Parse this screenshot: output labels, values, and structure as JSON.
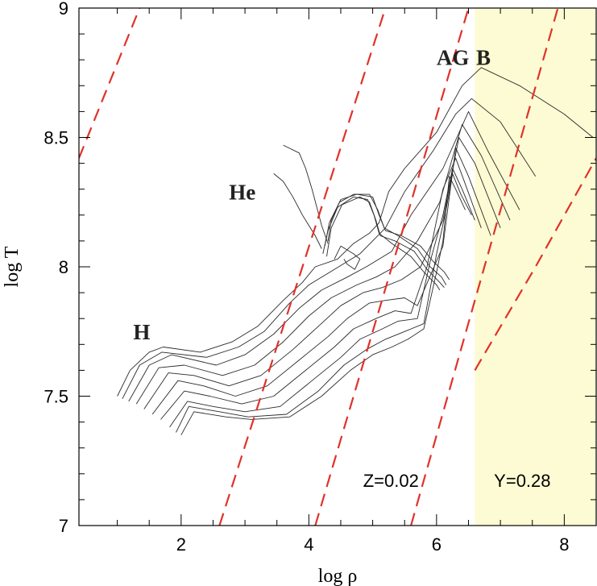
{
  "chart_data": {
    "type": "line",
    "xlabel": "log ρ",
    "ylabel": "log T",
    "xlim": [
      0.4,
      8.5
    ],
    "ylim": [
      7,
      9
    ],
    "x_ticks": [
      2,
      4,
      6,
      8
    ],
    "y_ticks": [
      7,
      7.5,
      8,
      8.5,
      9
    ],
    "x_tick_labels": [
      "2",
      "4",
      "6",
      "8"
    ],
    "y_tick_labels": [
      "7",
      "7.5",
      "8",
      "8.5",
      "9"
    ],
    "grid": false,
    "shaded_region": {
      "x_from": 6.6,
      "x_to": 8.5,
      "color": "#fdfbd3"
    },
    "annotations": [
      {
        "id": "label-h",
        "text": "H",
        "x": 1.25,
        "y": 7.72
      },
      {
        "id": "label-he",
        "text": "He",
        "x": 2.75,
        "y": 8.26
      },
      {
        "id": "label-agb-a",
        "text": "AG",
        "x": 6.0,
        "y": 8.78
      },
      {
        "id": "label-agb-b",
        "text": "B",
        "x": 6.62,
        "y": 8.78
      },
      {
        "id": "label-z",
        "text": "Z=0.02",
        "x": 4.85,
        "y": 7.15
      },
      {
        "id": "label-y",
        "text": "Y=0.28",
        "x": 6.9,
        "y": 7.15
      }
    ],
    "reference_lines": {
      "style": "dashed",
      "color": "#e0322a",
      "lines": [
        {
          "points": [
            [
              0.4,
              8.42
            ],
            [
              1.35,
              9.0
            ]
          ]
        },
        {
          "points": [
            [
              2.6,
              7.0
            ],
            [
              5.2,
              9.0
            ]
          ]
        },
        {
          "points": [
            [
              4.1,
              7.0
            ],
            [
              6.5,
              9.0
            ]
          ]
        },
        {
          "points": [
            [
              5.6,
              7.0
            ],
            [
              7.9,
              9.0
            ]
          ]
        },
        {
          "points": [
            [
              6.6,
              7.6
            ],
            [
              7.55,
              8.0
            ],
            [
              8.5,
              8.42
            ]
          ]
        }
      ]
    },
    "series": [
      {
        "points": [
          [
            1.0,
            7.5
          ],
          [
            1.2,
            7.6
          ],
          [
            1.5,
            7.67
          ],
          [
            1.72,
            7.69
          ],
          [
            2.3,
            7.67
          ],
          [
            2.8,
            7.71
          ],
          [
            3.2,
            7.77
          ],
          [
            3.6,
            7.87
          ],
          [
            3.9,
            7.94
          ],
          [
            4.1,
            8.0
          ],
          [
            4.45,
            8.03
          ],
          [
            4.7,
            8.09
          ],
          [
            4.95,
            8.13
          ],
          [
            5.1,
            8.17
          ],
          [
            5.25,
            8.29
          ],
          [
            5.5,
            8.38
          ],
          [
            6.0,
            8.52
          ],
          [
            6.4,
            8.7
          ],
          [
            6.7,
            8.77
          ],
          [
            7.3,
            8.7
          ],
          [
            8.0,
            8.59
          ],
          [
            8.45,
            8.5
          ]
        ]
      },
      {
        "points": [
          [
            1.08,
            7.49
          ],
          [
            1.35,
            7.62
          ],
          [
            1.7,
            7.67
          ],
          [
            2.4,
            7.65
          ],
          [
            2.9,
            7.69
          ],
          [
            3.3,
            7.75
          ],
          [
            3.7,
            7.86
          ],
          [
            4.0,
            7.93
          ],
          [
            4.4,
            7.99
          ],
          [
            4.8,
            8.05
          ],
          [
            5.2,
            8.15
          ],
          [
            5.5,
            8.29
          ],
          [
            5.95,
            8.45
          ],
          [
            6.3,
            8.59
          ],
          [
            6.55,
            8.65
          ],
          [
            7.0,
            8.56
          ],
          [
            7.55,
            8.35
          ]
        ]
      },
      {
        "points": [
          [
            1.18,
            7.48
          ],
          [
            1.5,
            7.62
          ],
          [
            1.85,
            7.66
          ],
          [
            2.55,
            7.62
          ],
          [
            3.0,
            7.66
          ],
          [
            3.45,
            7.74
          ],
          [
            3.85,
            7.84
          ],
          [
            4.2,
            7.91
          ],
          [
            4.6,
            7.96
          ],
          [
            4.9,
            8.0
          ],
          [
            5.3,
            8.06
          ],
          [
            5.6,
            8.2
          ],
          [
            6.1,
            8.38
          ],
          [
            6.5,
            8.6
          ],
          [
            6.8,
            8.45
          ],
          [
            7.3,
            8.22
          ]
        ]
      },
      {
        "points": [
          [
            1.3,
            7.47
          ],
          [
            1.65,
            7.61
          ],
          [
            2.05,
            7.62
          ],
          [
            2.65,
            7.58
          ],
          [
            3.15,
            7.62
          ],
          [
            3.6,
            7.71
          ],
          [
            4.0,
            7.81
          ],
          [
            4.35,
            7.88
          ],
          [
            4.75,
            7.93
          ],
          [
            5.05,
            7.96
          ],
          [
            5.35,
            8.0
          ],
          [
            5.7,
            8.1
          ],
          [
            6.05,
            8.25
          ],
          [
            6.4,
            8.55
          ],
          [
            6.7,
            8.43
          ],
          [
            7.15,
            8.18
          ]
        ]
      },
      {
        "points": [
          [
            1.42,
            7.45
          ],
          [
            1.8,
            7.59
          ],
          [
            2.2,
            7.58
          ],
          [
            2.75,
            7.54
          ],
          [
            3.25,
            7.58
          ],
          [
            3.75,
            7.68
          ],
          [
            4.15,
            7.77
          ],
          [
            4.5,
            7.85
          ],
          [
            4.85,
            7.9
          ],
          [
            5.15,
            7.92
          ],
          [
            5.45,
            7.95
          ],
          [
            5.75,
            8.0
          ],
          [
            6.1,
            8.18
          ],
          [
            6.35,
            8.5
          ],
          [
            6.6,
            8.4
          ],
          [
            7.0,
            8.15
          ]
        ]
      },
      {
        "points": [
          [
            1.55,
            7.43
          ],
          [
            1.95,
            7.56
          ],
          [
            2.35,
            7.54
          ],
          [
            2.85,
            7.5
          ],
          [
            3.35,
            7.54
          ],
          [
            3.85,
            7.64
          ],
          [
            4.3,
            7.73
          ],
          [
            4.6,
            7.8
          ],
          [
            4.95,
            7.86
          ],
          [
            5.2,
            7.87
          ],
          [
            5.5,
            7.88
          ],
          [
            5.7,
            7.85
          ],
          [
            6.1,
            8.08
          ],
          [
            6.3,
            8.46
          ],
          [
            6.5,
            8.35
          ],
          [
            6.85,
            8.12
          ]
        ]
      },
      {
        "points": [
          [
            1.68,
            7.41
          ],
          [
            2.05,
            7.52
          ],
          [
            2.45,
            7.5
          ],
          [
            2.95,
            7.47
          ],
          [
            3.45,
            7.5
          ],
          [
            3.95,
            7.6
          ],
          [
            4.4,
            7.69
          ],
          [
            4.7,
            7.76
          ],
          [
            5.05,
            7.8
          ],
          [
            5.35,
            7.83
          ],
          [
            5.6,
            7.82
          ],
          [
            5.85,
            8.0
          ],
          [
            6.1,
            8.3
          ],
          [
            6.3,
            8.42
          ],
          [
            6.45,
            8.32
          ],
          [
            6.7,
            8.15
          ]
        ]
      },
      {
        "points": [
          [
            1.82,
            7.38
          ],
          [
            2.1,
            7.48
          ],
          [
            2.5,
            7.46
          ],
          [
            3.0,
            7.44
          ],
          [
            3.55,
            7.46
          ],
          [
            4.05,
            7.56
          ],
          [
            4.5,
            7.65
          ],
          [
            4.8,
            7.72
          ],
          [
            5.15,
            7.76
          ],
          [
            5.4,
            7.79
          ],
          [
            5.7,
            7.8
          ],
          [
            5.9,
            8.02
          ],
          [
            6.1,
            8.2
          ],
          [
            6.25,
            8.38
          ],
          [
            6.4,
            8.3
          ],
          [
            6.6,
            8.18
          ]
        ]
      },
      {
        "points": [
          [
            1.92,
            7.36
          ],
          [
            2.12,
            7.46
          ],
          [
            2.6,
            7.44
          ],
          [
            3.05,
            7.42
          ],
          [
            3.65,
            7.43
          ],
          [
            4.15,
            7.52
          ],
          [
            4.55,
            7.62
          ],
          [
            4.9,
            7.68
          ],
          [
            5.2,
            7.72
          ],
          [
            5.5,
            7.75
          ],
          [
            5.8,
            7.78
          ],
          [
            6.0,
            8.05
          ],
          [
            6.15,
            8.22
          ],
          [
            6.25,
            8.36
          ],
          [
            6.38,
            8.28
          ],
          [
            6.55,
            8.2
          ]
        ]
      },
      {
        "points": [
          [
            2.0,
            7.35
          ],
          [
            2.2,
            7.44
          ],
          [
            2.7,
            7.42
          ],
          [
            3.1,
            7.41
          ],
          [
            3.7,
            7.42
          ],
          [
            4.2,
            7.5
          ],
          [
            4.65,
            7.6
          ],
          [
            5.0,
            7.66
          ],
          [
            5.3,
            7.69
          ],
          [
            5.55,
            7.72
          ],
          [
            5.8,
            7.76
          ],
          [
            6.0,
            7.98
          ],
          [
            6.1,
            8.1
          ],
          [
            6.2,
            8.35
          ],
          [
            6.3,
            8.3
          ],
          [
            6.45,
            8.22
          ]
        ]
      }
    ],
    "loop_series": [
      {
        "points": [
          [
            4.3,
            8.1
          ],
          [
            4.35,
            8.18
          ],
          [
            4.5,
            8.26
          ],
          [
            4.75,
            8.28
          ],
          [
            5.0,
            8.27
          ],
          [
            5.1,
            8.2
          ],
          [
            5.2,
            8.14
          ],
          [
            5.45,
            8.12
          ],
          [
            5.75,
            8.08
          ],
          [
            5.95,
            8.02
          ],
          [
            6.12,
            7.98
          ],
          [
            6.2,
            7.95
          ]
        ]
      },
      {
        "points": [
          [
            4.25,
            8.08
          ],
          [
            4.32,
            8.17
          ],
          [
            4.48,
            8.25
          ],
          [
            4.7,
            8.28
          ],
          [
            4.95,
            8.28
          ],
          [
            5.08,
            8.22
          ],
          [
            5.18,
            8.15
          ],
          [
            5.4,
            8.12
          ],
          [
            5.7,
            8.07
          ],
          [
            5.9,
            8.0
          ],
          [
            6.08,
            7.96
          ],
          [
            6.15,
            7.93
          ]
        ]
      },
      {
        "points": [
          [
            4.28,
            8.04
          ],
          [
            4.35,
            8.15
          ],
          [
            4.52,
            8.24
          ],
          [
            4.8,
            8.27
          ],
          [
            4.95,
            8.25
          ],
          [
            5.05,
            8.18
          ],
          [
            5.12,
            8.12
          ],
          [
            5.35,
            8.1
          ],
          [
            5.65,
            8.06
          ],
          [
            5.85,
            7.99
          ],
          [
            6.05,
            7.94
          ],
          [
            6.12,
            7.92
          ]
        ]
      },
      {
        "points": [
          [
            4.22,
            8.05
          ],
          [
            4.3,
            8.14
          ],
          [
            4.45,
            8.23
          ],
          [
            4.7,
            8.27
          ],
          [
            4.92,
            8.26
          ],
          [
            5.02,
            8.2
          ],
          [
            5.1,
            8.13
          ],
          [
            5.3,
            8.09
          ],
          [
            5.6,
            8.04
          ],
          [
            5.8,
            7.98
          ],
          [
            6.0,
            7.93
          ],
          [
            6.05,
            7.91
          ]
        ]
      },
      {
        "points": [
          [
            4.4,
            8.03
          ],
          [
            4.5,
            8.08
          ],
          [
            4.7,
            8.05
          ],
          [
            4.8,
            8.03
          ],
          [
            4.72,
            7.99
          ],
          [
            4.6,
            8.01
          ],
          [
            4.55,
            8.03
          ]
        ]
      },
      {
        "points": [
          [
            4.2,
            8.07
          ],
          [
            4.1,
            8.12
          ],
          [
            3.9,
            8.2
          ],
          [
            3.75,
            8.27
          ],
          [
            3.6,
            8.33
          ],
          [
            3.45,
            8.36
          ]
        ]
      },
      {
        "points": [
          [
            4.3,
            8.09
          ],
          [
            4.2,
            8.16
          ],
          [
            4.05,
            8.3
          ],
          [
            3.95,
            8.38
          ],
          [
            3.85,
            8.44
          ],
          [
            3.6,
            8.47
          ]
        ]
      }
    ]
  }
}
